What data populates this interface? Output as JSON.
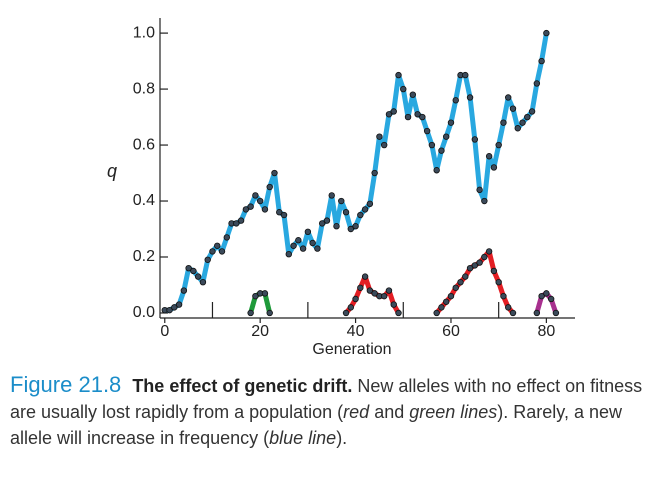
{
  "chart_data": {
    "type": "line",
    "ylabel": "q",
    "xlabel": "Generation",
    "xlim": [
      -1,
      86
    ],
    "ylim": [
      -0.018,
      1.054
    ],
    "xticks": [
      0,
      20,
      40,
      60,
      80
    ],
    "xminor_ticks": [
      10,
      30,
      50,
      70
    ],
    "yticks": [
      {
        "value": 0,
        "label": "0.0"
      },
      0.2,
      0.4,
      0.6,
      {
        "value": 0.8,
        "label": "0.8"
      },
      {
        "value": 1,
        "label": "1.0"
      }
    ],
    "series": [
      {
        "color": "#29a8e0",
        "x": [
          0,
          1,
          2,
          3,
          4,
          5,
          6,
          7,
          8,
          9,
          10,
          11,
          12,
          13,
          14,
          15,
          16,
          17,
          18,
          19,
          20,
          21,
          22,
          23,
          24,
          25,
          26,
          27,
          28,
          29,
          30,
          31,
          32,
          33,
          34,
          35,
          36,
          37,
          38,
          39,
          40,
          41,
          42,
          43,
          44,
          45,
          46,
          47,
          48,
          49,
          50,
          51,
          52,
          53,
          54,
          55,
          56,
          57,
          58,
          59,
          60,
          61,
          62,
          63,
          64,
          65,
          66,
          67,
          68,
          69,
          70,
          71,
          72,
          73,
          74,
          75,
          76,
          77,
          78,
          79,
          80
        ],
        "values": [
          0.01,
          0.01,
          0.02,
          0.03,
          0.08,
          0.16,
          0.15,
          0.13,
          0.11,
          0.19,
          0.22,
          0.24,
          0.22,
          0.27,
          0.32,
          0.32,
          0.33,
          0.37,
          0.38,
          0.42,
          0.4,
          0.37,
          0.45,
          0.5,
          0.36,
          0.35,
          0.21,
          0.24,
          0.26,
          0.23,
          0.29,
          0.25,
          0.23,
          0.32,
          0.33,
          0.42,
          0.31,
          0.4,
          0.36,
          0.3,
          0.31,
          0.35,
          0.37,
          0.39,
          0.5,
          0.63,
          0.6,
          0.71,
          0.72,
          0.85,
          0.8,
          0.7,
          0.78,
          0.71,
          0.7,
          0.65,
          0.6,
          0.51,
          0.58,
          0.63,
          0.68,
          0.76,
          0.85,
          0.85,
          0.77,
          0.62,
          0.44,
          0.4,
          0.56,
          0.52,
          0.6,
          0.68,
          0.77,
          0.73,
          0.66,
          0.68,
          0.7,
          0.72,
          0.82,
          0.9,
          1.0
        ]
      },
      {
        "color": "#1f9a3a",
        "x": [
          18,
          19,
          20,
          21,
          22
        ],
        "values": [
          0.0,
          0.06,
          0.07,
          0.07,
          0.0
        ]
      },
      {
        "color": "#e31e24",
        "x": [
          38,
          39,
          40,
          41,
          42,
          43,
          44,
          45,
          46,
          47,
          48,
          49
        ],
        "values": [
          0.0,
          0.02,
          0.05,
          0.09,
          0.13,
          0.08,
          0.07,
          0.06,
          0.06,
          0.08,
          0.03,
          0.0
        ]
      },
      {
        "color": "#e31e24",
        "x": [
          57,
          58,
          59,
          60,
          61,
          62,
          63,
          64,
          65,
          66,
          67,
          68,
          69,
          70,
          71,
          72,
          73
        ],
        "values": [
          0.0,
          0.02,
          0.04,
          0.06,
          0.09,
          0.11,
          0.13,
          0.16,
          0.17,
          0.18,
          0.2,
          0.22,
          0.15,
          0.11,
          0.06,
          0.02,
          0.0
        ]
      },
      {
        "color": "#a8308f",
        "x": [
          78,
          79,
          80,
          81,
          82
        ],
        "values": [
          0.0,
          0.06,
          0.07,
          0.05,
          0.0
        ]
      }
    ]
  },
  "caption": {
    "label": "Figure 21.8",
    "title": "The effect of genetic drift.",
    "segments": [
      {
        "text": "New alleles with no effect on fitness are usually lost rapidly from a population ("
      },
      {
        "text": "red",
        "italic": true
      },
      {
        "text": " and "
      },
      {
        "text": "green lines",
        "italic": true
      },
      {
        "text": "). Rarely, a new allele will increase in frequency ("
      },
      {
        "text": "blue line",
        "italic": true
      },
      {
        "text": ")."
      }
    ]
  }
}
